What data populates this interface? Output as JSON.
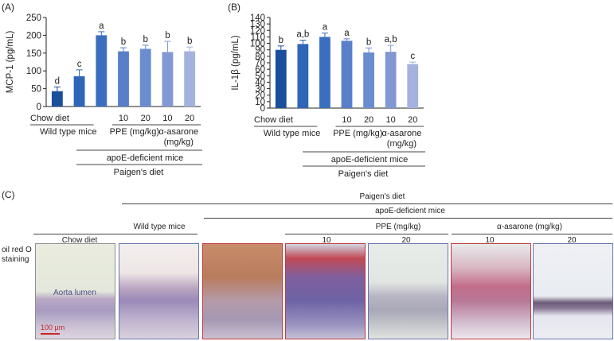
{
  "panels": {
    "a_label": "(A)",
    "b_label": "(B)",
    "c_label": "(C)"
  },
  "chart_data": [
    {
      "type": "bar",
      "ylabel": "MCP-1 (pg/mL)",
      "ylim": [
        0,
        250
      ],
      "yticks": [
        0,
        50,
        100,
        150,
        200,
        250
      ],
      "categories": [
        "Chow diet",
        "Chow diet",
        "Paigen's diet",
        "PPE 10",
        "PPE 20",
        "α-asarone 10",
        "α-asarone 20"
      ],
      "values": [
        43,
        85,
        200,
        155,
        162,
        153,
        155
      ],
      "errors": [
        12,
        18,
        10,
        10,
        10,
        30,
        12
      ],
      "letters": [
        "d",
        "c",
        "a",
        "b",
        "b",
        "b",
        "b"
      ],
      "colors": [
        "#1a4f9c",
        "#2e66b8",
        "#3a6fc0",
        "#5a7fca",
        "#6a8dd0",
        "#8198d2",
        "#a3b2de"
      ],
      "grid": false
    },
    {
      "type": "bar",
      "ylabel": "IL-1β (pg/mL)",
      "ylim": [
        0,
        140
      ],
      "yticks": [
        0,
        10,
        20,
        30,
        40,
        50,
        60,
        70,
        80,
        90,
        100,
        110,
        120,
        130,
        140
      ],
      "categories": [
        "Chow diet",
        "Chow diet",
        "Paigen's diet",
        "PPE 10",
        "PPE 20",
        "α-asarone 10",
        "α-asarone 20"
      ],
      "values": [
        90,
        99,
        110,
        104,
        86,
        87,
        68
      ],
      "errors": [
        6,
        6,
        6,
        3,
        7,
        10,
        3
      ],
      "letters": [
        "b",
        "a,b",
        "a",
        "a",
        "b",
        "a,b",
        "c"
      ],
      "colors": [
        "#1a4f9c",
        "#2e66b8",
        "#3a6fc0",
        "#5a7fca",
        "#6a8dd0",
        "#8198d2",
        "#a3b2de"
      ],
      "grid": false
    }
  ],
  "axis_labels": {
    "chow_diet": "Chow diet",
    "wild_type": "Wild type mice",
    "ppe": "PPE (mg/kg)",
    "asarone": "α-asarone",
    "asarone_unit": "(mg/kg)",
    "ten": "10",
    "twenty": "20",
    "apoe": "apoE-deficient mice",
    "paigen": "Paigen's diet"
  },
  "histology": {
    "paigen": "Paigen's diet",
    "wild_type": "Wild type mice",
    "apoe": "apoE-deficient mice",
    "ppe": "PPE (mg/kg)",
    "asarone": "α-asarone (mg/kg)",
    "ten": "10",
    "twenty": "20",
    "chow": "Chow diet",
    "stain_1": "oil red O",
    "stain_2": "staining",
    "lumen": "Aorta lumen",
    "scale": "100 μm"
  }
}
